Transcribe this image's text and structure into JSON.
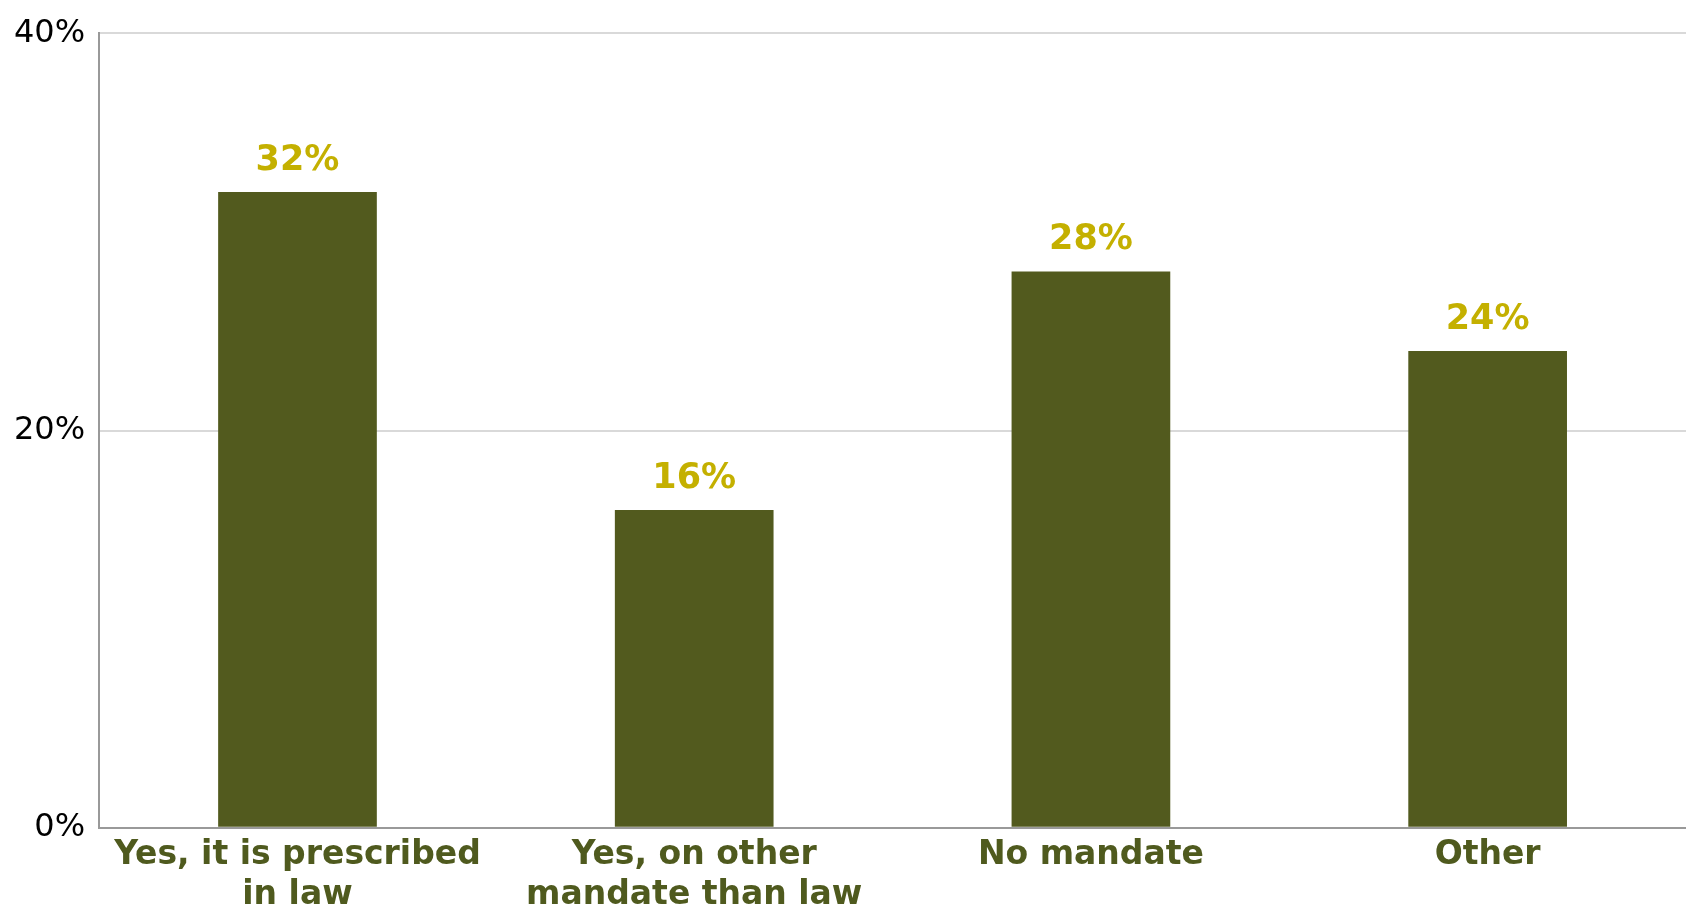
{
  "chart_data": {
    "type": "bar",
    "categories": [
      "Yes, it is prescribed in law",
      "Yes, on other mandate than law",
      "No mandate",
      "Other"
    ],
    "values": [
      32,
      16,
      28,
      24
    ],
    "color": "#525a1e",
    "ylim": [
      0,
      40
    ],
    "yticks": [
      {
        "value": 0,
        "label": "0%"
      },
      {
        "value": 20,
        "label": "20%"
      },
      {
        "value": 40,
        "label": "40%"
      }
    ],
    "value_labels": [
      "32%",
      "16%",
      "28%",
      "24%"
    ],
    "grid": "y",
    "legend": false
  }
}
